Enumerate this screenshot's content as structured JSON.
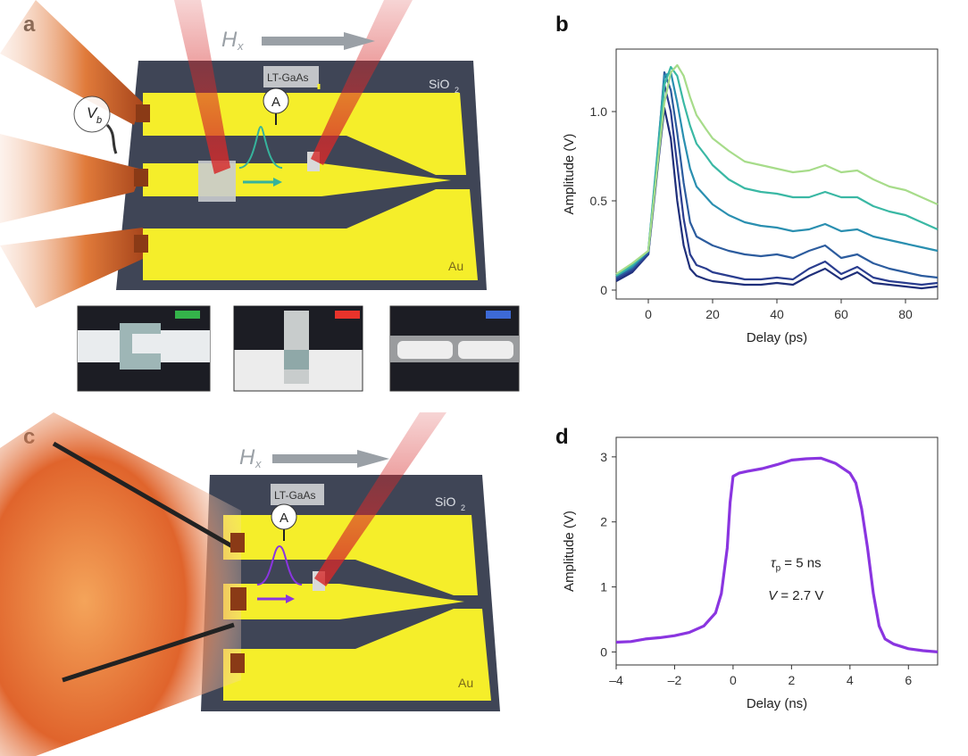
{
  "panels": {
    "a": "a",
    "b": "b",
    "c": "c",
    "d": "d"
  },
  "schematic": {
    "field_label": "H",
    "field_sub": "x",
    "ltgaas_label": "LT-GaAs",
    "sio2_label": "SiO",
    "sio2_sub": "2",
    "au_label": "Au",
    "ammeter_label": "A",
    "bias_label": "V",
    "bias_sub": "b",
    "inset_markers": [
      "#34b34a",
      "#e8332b",
      "#3d6ad6"
    ]
  },
  "colors": {
    "gold": "#f5ee2a",
    "substrate": "#3f4556",
    "laser": "#d62a2a",
    "pulse_b_short": "#36b39c",
    "pulse_d": "#8a35e0"
  },
  "chart_data": [
    {
      "type": "line",
      "panel": "b",
      "xlabel": "Delay (ps)",
      "ylabel": "Amplitude (V)",
      "xlim": [
        -10,
        90
      ],
      "ylim": [
        -0.05,
        1.35
      ],
      "xticks": [
        0,
        20,
        40,
        60,
        80
      ],
      "yticks": [
        0,
        0.5,
        1.0
      ],
      "ytick_labels": [
        "0",
        "0.5",
        "1.0"
      ],
      "x": [
        -10,
        -5,
        0,
        3,
        5,
        7,
        9,
        11,
        13,
        15,
        18,
        20,
        25,
        30,
        35,
        40,
        45,
        50,
        55,
        60,
        65,
        70,
        75,
        80,
        85,
        90
      ],
      "series": [
        {
          "color": "#1f2f7a",
          "values": [
            0.05,
            0.1,
            0.2,
            0.7,
            1.02,
            0.85,
            0.5,
            0.25,
            0.12,
            0.08,
            0.06,
            0.05,
            0.04,
            0.03,
            0.03,
            0.04,
            0.03,
            0.08,
            0.12,
            0.06,
            0.1,
            0.04,
            0.03,
            0.02,
            0.01,
            0.02
          ]
        },
        {
          "color": "#2a3d8f",
          "values": [
            0.06,
            0.11,
            0.2,
            0.75,
            1.15,
            1.0,
            0.7,
            0.4,
            0.2,
            0.14,
            0.12,
            0.1,
            0.08,
            0.06,
            0.06,
            0.07,
            0.06,
            0.12,
            0.16,
            0.09,
            0.13,
            0.07,
            0.05,
            0.04,
            0.03,
            0.04
          ]
        },
        {
          "color": "#2c5c9e",
          "values": [
            0.07,
            0.12,
            0.21,
            0.78,
            1.22,
            1.12,
            0.88,
            0.6,
            0.38,
            0.3,
            0.27,
            0.25,
            0.22,
            0.2,
            0.19,
            0.2,
            0.18,
            0.22,
            0.25,
            0.18,
            0.2,
            0.15,
            0.12,
            0.1,
            0.08,
            0.07
          ]
        },
        {
          "color": "#2a8fb0",
          "values": [
            0.08,
            0.13,
            0.22,
            0.8,
            1.2,
            1.22,
            1.05,
            0.85,
            0.68,
            0.58,
            0.52,
            0.48,
            0.42,
            0.38,
            0.36,
            0.35,
            0.33,
            0.34,
            0.37,
            0.33,
            0.34,
            0.3,
            0.28,
            0.26,
            0.24,
            0.22
          ]
        },
        {
          "color": "#3ab8a4",
          "values": [
            0.08,
            0.14,
            0.22,
            0.78,
            1.15,
            1.25,
            1.2,
            1.05,
            0.92,
            0.82,
            0.75,
            0.7,
            0.62,
            0.57,
            0.55,
            0.54,
            0.52,
            0.52,
            0.55,
            0.52,
            0.52,
            0.47,
            0.44,
            0.42,
            0.38,
            0.34
          ]
        },
        {
          "color": "#a7dc8a",
          "values": [
            0.09,
            0.15,
            0.22,
            0.72,
            1.05,
            1.22,
            1.26,
            1.2,
            1.08,
            0.98,
            0.9,
            0.85,
            0.78,
            0.72,
            0.7,
            0.68,
            0.66,
            0.67,
            0.7,
            0.66,
            0.67,
            0.62,
            0.58,
            0.56,
            0.52,
            0.48
          ]
        }
      ]
    },
    {
      "type": "line",
      "panel": "d",
      "xlabel": "Delay (ns)",
      "ylabel": "Amplitude (V)",
      "xlim": [
        -4,
        7
      ],
      "ylim": [
        -0.2,
        3.3
      ],
      "xticks": [
        -4,
        -2,
        0,
        2,
        4,
        6
      ],
      "xtick_labels": [
        "–4",
        "–2",
        "0",
        "2",
        "4",
        "6"
      ],
      "yticks": [
        0,
        1,
        2,
        3
      ],
      "annotation_tau": "τ",
      "annotation_tau_sub": "p",
      "annotation_tau_value": " = 5 ns",
      "annotation_v": "V",
      "annotation_v_value": " = 2.7 V",
      "x": [
        -4,
        -3.5,
        -3,
        -2.5,
        -2,
        -1.5,
        -1,
        -0.6,
        -0.4,
        -0.2,
        -0.1,
        0,
        0.2,
        0.5,
        1,
        1.5,
        2,
        2.5,
        3,
        3.5,
        4,
        4.2,
        4.4,
        4.6,
        4.8,
        5,
        5.2,
        5.5,
        6,
        6.5,
        7
      ],
      "series": [
        {
          "color": "#8a35e0",
          "values": [
            0.15,
            0.16,
            0.2,
            0.22,
            0.25,
            0.3,
            0.4,
            0.6,
            0.9,
            1.6,
            2.3,
            2.7,
            2.75,
            2.78,
            2.82,
            2.88,
            2.95,
            2.97,
            2.98,
            2.9,
            2.75,
            2.6,
            2.2,
            1.6,
            0.9,
            0.4,
            0.2,
            0.12,
            0.05,
            0.02,
            0.0
          ]
        }
      ]
    }
  ]
}
